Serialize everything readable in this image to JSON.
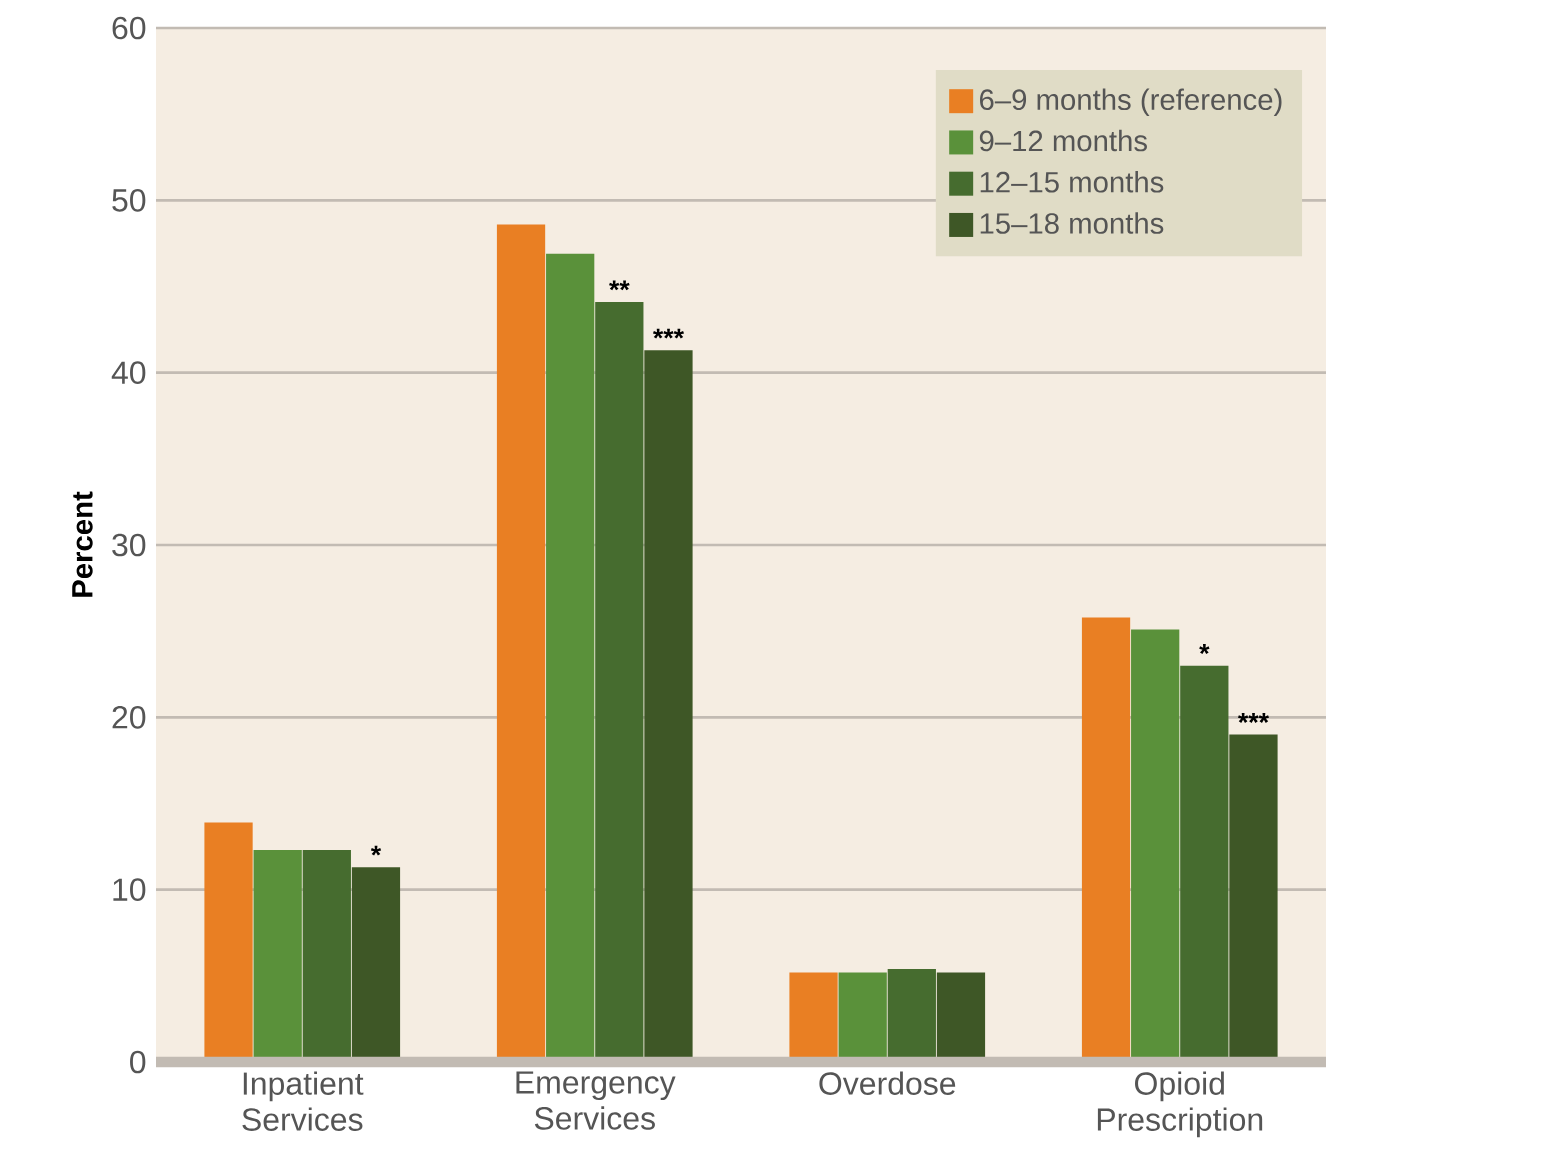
{
  "chart_data": {
    "type": "bar",
    "ylabel": "Percent",
    "categories": [
      "Inpatient Services",
      "Emergency Services",
      "Overdose",
      "Opioid Prescription"
    ],
    "series": [
      {
        "name": "6–9 months (reference)",
        "color": "#e97f23",
        "values": [
          13.9,
          48.6,
          5.2,
          25.8
        ]
      },
      {
        "name": "9–12 months",
        "color": "#5a913a",
        "values": [
          12.3,
          46.9,
          5.2,
          25.1
        ]
      },
      {
        "name": "12–15 months",
        "color": "#466c2f",
        "values": [
          12.3,
          44.1,
          5.4,
          23.0
        ]
      },
      {
        "name": "15–18 months",
        "color": "#3e5726",
        "values": [
          11.3,
          41.3,
          5.2,
          19.0
        ]
      }
    ],
    "ylim": [
      0,
      60
    ],
    "yticks": [
      0,
      10,
      20,
      30,
      40,
      50,
      60
    ],
    "grid": "y",
    "legend": "top right",
    "annotations": [
      {
        "text": "*",
        "x": "Inpatient Services",
        "y": 11.3
      },
      {
        "text": "**",
        "x": "Emergency Services",
        "y": 44.1
      },
      {
        "text": "***",
        "x": "Emergency Services",
        "y": 41.3
      },
      {
        "text": "*",
        "x": "Opioid Prescription",
        "y": 23.0
      },
      {
        "text": "***",
        "x": "Opioid Prescription",
        "y": 19.0
      }
    ]
  }
}
